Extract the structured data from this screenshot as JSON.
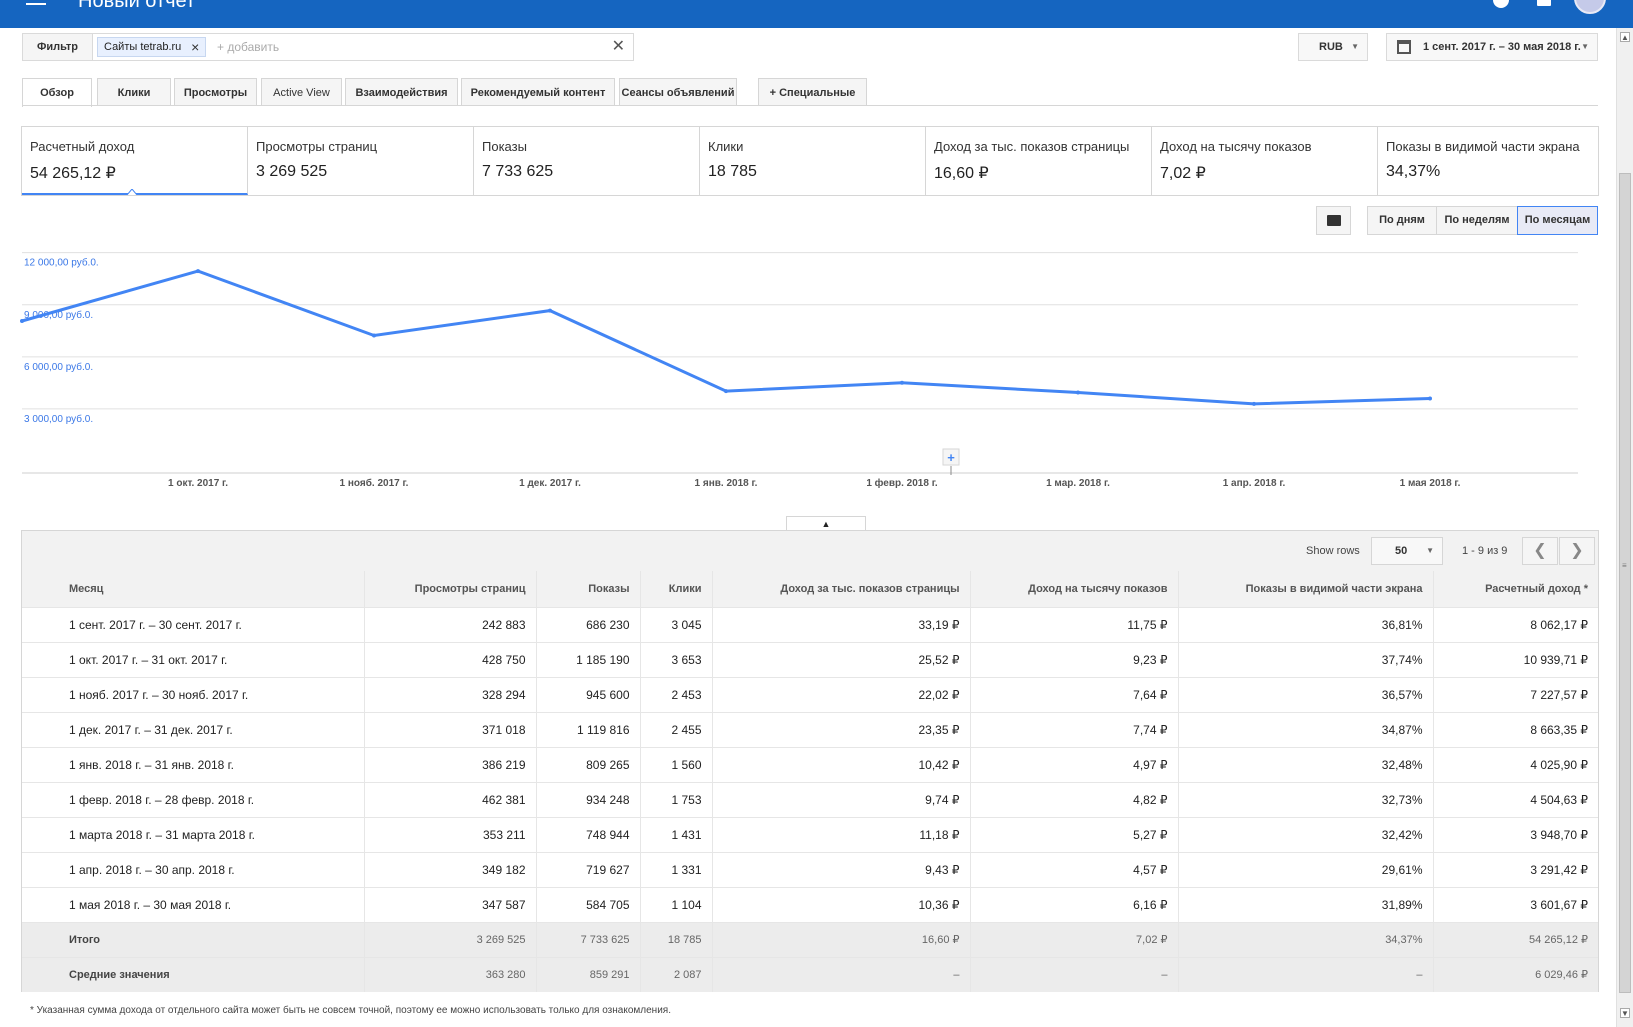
{
  "header": {
    "title": "Новый отчет"
  },
  "filter": {
    "label": "Фильтр",
    "chip_label": "Сайты tetrab.ru",
    "add_placeholder": "+ добавить",
    "clear_symbol": "✕"
  },
  "currency": {
    "value": "RUB"
  },
  "date_range": {
    "value": "1 сент. 2017 г. – 30 мая 2018 г."
  },
  "tabs": [
    {
      "label": "Обзор"
    },
    {
      "label": "Клики"
    },
    {
      "label": "Просмотры"
    },
    {
      "label": "Active View"
    },
    {
      "label": "Взаимодействия"
    },
    {
      "label": "Рекомендуемый контент"
    },
    {
      "label": "Сеансы объявлений"
    },
    {
      "label": "+ Специальные"
    }
  ],
  "metrics": [
    {
      "label": "Расчетный доход",
      "value": "54 265,12 ₽"
    },
    {
      "label": "Просмотры страниц",
      "value": "3 269 525"
    },
    {
      "label": "Показы",
      "value": "7 733 625"
    },
    {
      "label": "Клики",
      "value": "18 785"
    },
    {
      "label": "Доход за тыс. показов страницы",
      "value": "16,60 ₽"
    },
    {
      "label": "Доход на тысячу показов",
      "value": "7,02 ₽"
    },
    {
      "label": "Показы в видимой части экрана",
      "value": "34,37%"
    }
  ],
  "period_buttons": [
    {
      "label": "По дням"
    },
    {
      "label": "По неделям"
    },
    {
      "label": "По месяцам"
    }
  ],
  "chart_data": {
    "type": "line",
    "title": "",
    "xlabel": "",
    "ylabel": "",
    "y_tick_labels": [
      "12 000,00 руб.0.",
      "9 000,00 руб.0.",
      "6 000,00 руб.0.",
      "3 000,00 руб.0."
    ],
    "y_ticks": [
      12000,
      9000,
      6000,
      3000
    ],
    "ylim": [
      0,
      12500
    ],
    "x_tick_labels": [
      "1 окт. 2017 г.",
      "1 нояб. 2017 г.",
      "1 дек. 2017 г.",
      "1 янв. 2018 г.",
      "1 февр. 2018 г.",
      "1 мар. 2018 г.",
      "1 апр. 2018 г.",
      "1 мая 2018 г."
    ],
    "x": [
      "1 сент. 2017 г.",
      "1 окт. 2017 г.",
      "1 нояб. 2017 г.",
      "1 дек. 2017 г.",
      "1 янв. 2018 г.",
      "1 февр. 2018 г.",
      "1 мар. 2018 г.",
      "1 апр. 2018 г.",
      "1 мая 2018 г."
    ],
    "series": [
      {
        "values": [
          8062.17,
          10939.71,
          7227.57,
          8663.35,
          4025.9,
          4504.63,
          3948.7,
          3291.42,
          3601.67
        ],
        "color": "#4285f4"
      }
    ],
    "grid": true,
    "annotation_add_symbol": "+"
  },
  "table": {
    "show_rows_label": "Show rows",
    "rows_value": "50",
    "page_info": "1 - 9 из 9",
    "prev_symbol": "❮",
    "next_symbol": "❯",
    "columns": [
      "Месяц",
      "Просмотры страниц",
      "Показы",
      "Клики",
      "Доход за тыс. показов страницы",
      "Доход на тысячу показов",
      "Показы в видимой части экрана",
      "Расчетный доход *"
    ],
    "rows": [
      [
        "1 сент. 2017 г. – 30 сент. 2017 г.",
        "242 883",
        "686 230",
        "3 045",
        "33,19 ₽",
        "11,75 ₽",
        "36,81%",
        "8 062,17 ₽"
      ],
      [
        "1 окт. 2017 г. – 31 окт. 2017 г.",
        "428 750",
        "1 185 190",
        "3 653",
        "25,52 ₽",
        "9,23 ₽",
        "37,74%",
        "10 939,71 ₽"
      ],
      [
        "1 нояб. 2017 г. – 30 нояб. 2017 г.",
        "328 294",
        "945 600",
        "2 453",
        "22,02 ₽",
        "7,64 ₽",
        "36,57%",
        "7 227,57 ₽"
      ],
      [
        "1 дек. 2017 г. – 31 дек. 2017 г.",
        "371 018",
        "1 119 816",
        "2 455",
        "23,35 ₽",
        "7,74 ₽",
        "34,87%",
        "8 663,35 ₽"
      ],
      [
        "1 янв. 2018 г. – 31 янв. 2018 г.",
        "386 219",
        "809 265",
        "1 560",
        "10,42 ₽",
        "4,97 ₽",
        "32,48%",
        "4 025,90 ₽"
      ],
      [
        "1 февр. 2018 г. – 28 февр. 2018 г.",
        "462 381",
        "934 248",
        "1 753",
        "9,74 ₽",
        "4,82 ₽",
        "32,73%",
        "4 504,63 ₽"
      ],
      [
        "1 марта 2018 г. – 31 марта 2018 г.",
        "353 211",
        "748 944",
        "1 431",
        "11,18 ₽",
        "5,27 ₽",
        "32,42%",
        "3 948,70 ₽"
      ],
      [
        "1 апр. 2018 г. – 30 апр. 2018 г.",
        "349 182",
        "719 627",
        "1 331",
        "9,43 ₽",
        "4,57 ₽",
        "29,61%",
        "3 291,42 ₽"
      ],
      [
        "1 мая 2018 г. – 30 мая 2018 г.",
        "347 587",
        "584 705",
        "1 104",
        "10,36 ₽",
        "6,16 ₽",
        "31,89%",
        "3 601,67 ₽"
      ]
    ],
    "summary": [
      [
        "Итого",
        "3 269 525",
        "7 733 625",
        "18 785",
        "16,60 ₽",
        "7,02 ₽",
        "34,37%",
        "54 265,12 ₽"
      ],
      [
        "Средние значения",
        "363 280",
        "859 291",
        "2 087",
        "–",
        "–",
        "–",
        "6 029,46 ₽"
      ]
    ]
  },
  "footnote": "* Указанная сумма дохода от отдельного сайта может быть не совсем точной, поэтому ее можно использовать только для ознакомления."
}
